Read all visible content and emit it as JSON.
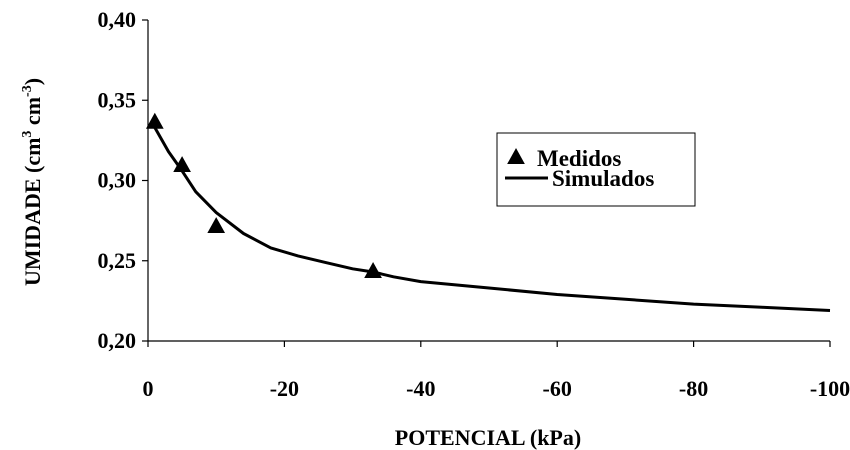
{
  "chart_data": {
    "type": "line",
    "xlabel": "POTENCIAL (kPa)",
    "ylabel": {
      "main": "UMIDADE (cm",
      "exp1": "3",
      "mid": " cm",
      "exp2": "-3",
      "end": ")"
    },
    "xlim": [
      0,
      -100
    ],
    "ylim": [
      0.2,
      0.4
    ],
    "x_ticks": [
      0,
      -20,
      -40,
      -60,
      -80,
      -100
    ],
    "x_tick_labels": [
      "0",
      "-20",
      "-40",
      "-60",
      "-80",
      "-100"
    ],
    "y_ticks": [
      0.2,
      0.25,
      0.3,
      0.35,
      0.4
    ],
    "y_tick_labels": [
      "0,20",
      "0,25",
      "0,30",
      "0,35",
      "0,40"
    ],
    "grid": false,
    "legend_position": "right",
    "series": [
      {
        "name": "Medidos",
        "kind": "scatter",
        "marker": "triangle",
        "color": "#000000",
        "x": [
          -1,
          -5,
          -10,
          -33
        ],
        "y": [
          0.336,
          0.309,
          0.271,
          0.243
        ]
      },
      {
        "name": "Simulados",
        "kind": "line",
        "color": "#000000",
        "x": [
          -1,
          -3,
          -5,
          -7,
          -10,
          -14,
          -18,
          -22,
          -26,
          -30,
          -33,
          -36,
          -40,
          -50,
          -60,
          -70,
          -80,
          -90,
          -100
        ],
        "y": [
          0.333,
          0.318,
          0.306,
          0.293,
          0.28,
          0.267,
          0.258,
          0.253,
          0.249,
          0.245,
          0.243,
          0.24,
          0.237,
          0.233,
          0.229,
          0.226,
          0.223,
          0.221,
          0.219
        ]
      }
    ]
  }
}
